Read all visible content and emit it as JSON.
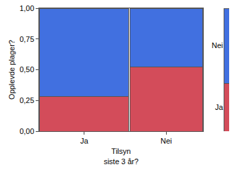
{
  "chart_data": {
    "type": "mosaic",
    "xlabel": "Tilsyn\nsiste 3 år?",
    "ylabel": "Opplevde plager?",
    "categories": [
      "Ja",
      "Nei"
    ],
    "widths": [
      0.55,
      0.45
    ],
    "stacked": true,
    "series": [
      {
        "name": "Ja",
        "color": "#d34c5a",
        "values": [
          0.28,
          0.525
        ],
        "total": 0.39
      },
      {
        "name": "Nei",
        "color": "#4170e0",
        "values": [
          0.72,
          0.475
        ],
        "total": 0.61
      }
    ],
    "ylim": [
      0,
      1
    ],
    "yticks": [
      {
        "value": 0,
        "label": "0,00"
      },
      {
        "value": 0.25,
        "label": "0,25"
      },
      {
        "value": 0.5,
        "label": "0,50"
      },
      {
        "value": 0.75,
        "label": "0,75"
      },
      {
        "value": 1,
        "label": "1,00"
      }
    ],
    "grid": false
  }
}
